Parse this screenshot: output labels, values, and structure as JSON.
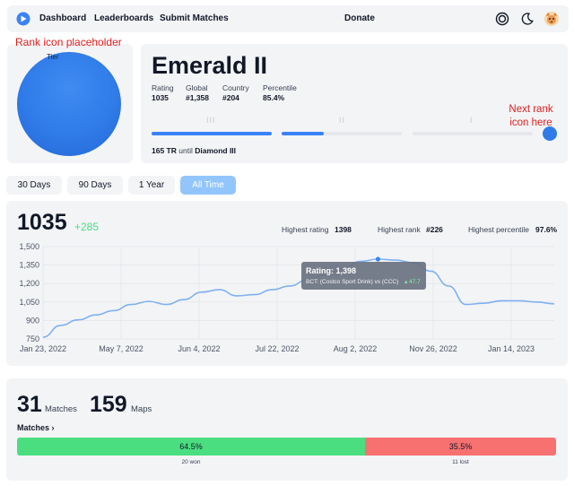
{
  "nav": {
    "items": [
      {
        "label": "Dashboard"
      },
      {
        "label": "Leaderboards"
      },
      {
        "label": "Submit Matches"
      }
    ],
    "donate_label": "Donate",
    "icons": [
      "logo-icon",
      "ring-icon",
      "moon-icon",
      "avatar"
    ]
  },
  "rank": {
    "placeholder_note": "Rank icon placeholder",
    "tier_label": "Tier",
    "title": "Emerald II",
    "stats": [
      {
        "label": "Rating",
        "value": "1035"
      },
      {
        "label": "Global",
        "value": "#1,358"
      },
      {
        "label": "Country",
        "value": "#204"
      },
      {
        "label": "Percentile",
        "value": "85.4%"
      }
    ],
    "progress_ticks": [
      "III",
      "II",
      "I"
    ],
    "progress_fractions": [
      1.0,
      0.35,
      0.0
    ],
    "next_rank_note": "Next rank icon here",
    "tr_amount": "165 TR",
    "tr_until": "until",
    "tr_next": "Diamond III"
  },
  "ranges": [
    {
      "label": "30 Days",
      "active": false
    },
    {
      "label": "90 Days",
      "active": false
    },
    {
      "label": "1 Year",
      "active": false
    },
    {
      "label": "All Time",
      "active": true
    }
  ],
  "summary": {
    "rating": "1035",
    "delta": "+285",
    "highs": [
      {
        "label": "Highest rating",
        "value": "1398"
      },
      {
        "label": "Highest rank",
        "value": "#226"
      },
      {
        "label": "Highest percentile",
        "value": "97.6%"
      }
    ]
  },
  "chart_data": {
    "type": "line",
    "title": "",
    "xlabel": "",
    "ylabel": "",
    "ylim": [
      750,
      1500
    ],
    "y_ticks": [
      "1,500",
      "1,350",
      "1,200",
      "1,050",
      "900",
      "750"
    ],
    "x_ticks": [
      "Jan 23, 2022",
      "May 7, 2022",
      "Jun 4, 2022",
      "Jul 22, 2022",
      "Aug 2, 2022",
      "Nov 26, 2022",
      "Jan 14, 2023"
    ],
    "grid": true,
    "series": [
      {
        "color": "#7fb0f0",
        "values": [
          765,
          860,
          905,
          945,
          980,
          1030,
          1055,
          1030,
          1070,
          1130,
          1150,
          1100,
          1110,
          1150,
          1180,
          1230,
          1270,
          1320,
          1380,
          1398,
          1390,
          1370,
          1300,
          1180,
          1030,
          1040,
          1060,
          1060,
          1050,
          1035
        ]
      }
    ],
    "highlight_index": 19,
    "tooltip": {
      "title": "Rating: 1,398",
      "detail": "BCT: (Costco Sport Drink) vs (CCC)",
      "delta": "▴ 47.7"
    }
  },
  "matches": {
    "matches_count": "31",
    "matches_label": "Matches",
    "maps_count": "159",
    "maps_label": "Maps",
    "link_label": "Matches ›",
    "win_pct": "64.5%",
    "loss_pct": "35.5%",
    "win_fraction": 0.645,
    "won_label": "20 won",
    "lost_label": "11 lost",
    "win_color": "#4ade80",
    "loss_color": "#f87171"
  },
  "colors": {
    "accent": "#3b82f6",
    "active_range": "#93c5fd",
    "note_red": "#e11d1d",
    "card_bg": "#f3f4f6"
  }
}
